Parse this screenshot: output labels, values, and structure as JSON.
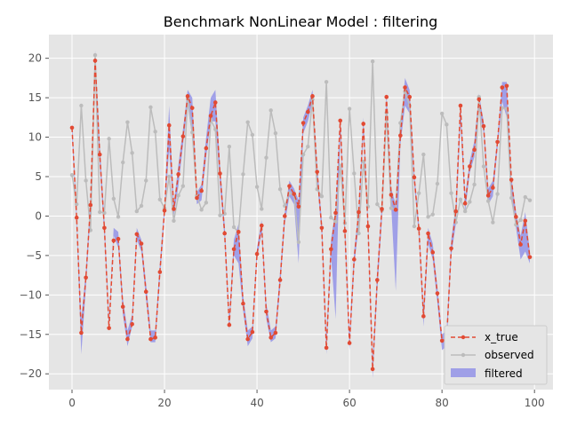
{
  "chart_data": {
    "type": "line",
    "title": "Benchmark NonLinear Model : filtering",
    "xlabel": "",
    "ylabel": "",
    "xlim": [
      -5,
      104
    ],
    "ylim": [
      -22,
      23
    ],
    "xticks": [
      0,
      20,
      40,
      60,
      80,
      100
    ],
    "yticks": [
      -20,
      -15,
      -10,
      -5,
      0,
      5,
      10,
      15,
      20
    ],
    "grid": true,
    "legend_position": "lower right",
    "x": [
      0,
      1,
      2,
      3,
      4,
      5,
      6,
      7,
      8,
      9,
      10,
      11,
      12,
      13,
      14,
      15,
      16,
      17,
      18,
      19,
      20,
      21,
      22,
      23,
      24,
      25,
      26,
      27,
      28,
      29,
      30,
      31,
      32,
      33,
      34,
      35,
      36,
      37,
      38,
      39,
      40,
      41,
      42,
      43,
      44,
      45,
      46,
      47,
      48,
      49,
      50,
      51,
      52,
      53,
      54,
      55,
      56,
      57,
      58,
      59,
      60,
      61,
      62,
      63,
      64,
      65,
      66,
      67,
      68,
      69,
      70,
      71,
      72,
      73,
      74,
      75,
      76,
      77,
      78,
      79,
      80,
      81,
      82,
      83,
      84,
      85,
      86,
      87,
      88,
      89,
      90,
      91,
      92,
      93,
      94,
      95,
      96,
      97,
      98,
      99
    ],
    "series": [
      {
        "name": "x_true",
        "style": "dashed-marker",
        "color": "#e24a33",
        "values": [
          11.2,
          -0.2,
          -14.8,
          -7.8,
          1.4,
          19.7,
          7.8,
          -1.5,
          -14.2,
          -3.1,
          -2.9,
          -11.5,
          -15.6,
          -13.7,
          -2.3,
          -3.5,
          -9.6,
          -15.6,
          -15.4,
          -7.1,
          0.7,
          11.5,
          0.9,
          5.3,
          10.1,
          15.2,
          13.7,
          2.3,
          3.2,
          8.6,
          12.7,
          14.4,
          5.4,
          -2.2,
          -13.8,
          -4.2,
          -2.0,
          -11.1,
          -15.6,
          -14.7,
          -4.8,
          -1.2,
          -12.1,
          -15.4,
          -14.8,
          -8.1,
          0.0,
          3.8,
          2.8,
          1.2,
          11.8,
          13.2,
          15.2,
          5.6,
          -1.5,
          -16.7,
          -4.2,
          0.4,
          12.1,
          -1.9,
          -16.1,
          -5.5,
          0.5,
          11.7,
          -1.3,
          -19.4,
          -8.1,
          0.9,
          15.1,
          2.7,
          0.8,
          10.2,
          16.3,
          15.1,
          4.9,
          -1.6,
          -12.7,
          -2.2,
          -4.6,
          -9.8,
          -15.8,
          -15.6,
          -4.1,
          0.6,
          14.0,
          1.6,
          6.3,
          8.4,
          14.8,
          11.4,
          2.6,
          3.6,
          9.4,
          16.3,
          16.5,
          4.6,
          -0.1,
          -3.6,
          -0.6,
          -5.2
        ]
      },
      {
        "name": "observed",
        "style": "solid-marker",
        "color": "#bcbcbc",
        "values": [
          5.2,
          1.5,
          14.0,
          4.5,
          -1.8,
          20.4,
          0.5,
          0.4,
          9.8,
          2.2,
          -0.1,
          6.8,
          11.9,
          8.0,
          0.6,
          1.3,
          4.5,
          13.8,
          10.7,
          2.1,
          1.0,
          5.0,
          -0.6,
          2.6,
          3.8,
          14.9,
          10.6,
          2.6,
          0.8,
          1.7,
          12.2,
          11.0,
          0.1,
          0.3,
          8.8,
          -1.4,
          -2.1,
          5.3,
          11.9,
          10.3,
          3.7,
          0.9,
          7.4,
          13.4,
          10.5,
          3.4,
          1.3,
          2.9,
          2.7,
          -3.3,
          7.8,
          8.8,
          14.8,
          3.4,
          2.5,
          17.0,
          -0.2,
          -0.7,
          6.4,
          -0.9,
          13.6,
          5.4,
          -2.2,
          6.9,
          1.2,
          19.6,
          1.5,
          0.7,
          13.1,
          1.0,
          0.8,
          11.8,
          15.8,
          14.0,
          -1.3,
          2.9,
          7.8,
          -0.1,
          0.2,
          4.1,
          13.0,
          11.6,
          2.9,
          -0.8,
          2.1,
          0.6,
          1.8,
          4.0,
          15.1,
          6.3,
          1.9,
          -0.8,
          2.8,
          13.7,
          13.6,
          2.3,
          -1.1,
          -0.5,
          2.4,
          2.0
        ]
      },
      {
        "name": "filtered",
        "style": "band",
        "color": "#7a7ae8",
        "lower": [
          10.0,
          -1.0,
          -17.5,
          -9.0,
          0.5,
          18.5,
          6.5,
          -2.5,
          -14.5,
          -2.5,
          -4.0,
          -12.5,
          -16.5,
          -14.0,
          -3.0,
          -4.5,
          -10.5,
          -16.0,
          -16.0,
          -8.0,
          0.0,
          8.5,
          0.0,
          3.8,
          9.0,
          14.0,
          10.0,
          1.5,
          2.0,
          7.5,
          12.0,
          12.0,
          4.0,
          -3.0,
          -14.5,
          -5.0,
          -6.0,
          -12.0,
          -16.5,
          -15.5,
          -5.5,
          -2.0,
          -13.0,
          -16.0,
          -15.5,
          -9.0,
          -1.0,
          2.5,
          1.5,
          -6.0,
          10.5,
          12.0,
          14.5,
          4.5,
          -2.5,
          -17.5,
          -5.0,
          -13.0,
          10.5,
          -3.0,
          -17.0,
          -6.5,
          -1.0,
          10.5,
          -2.0,
          -20.5,
          -9.5,
          -0.5,
          14.0,
          1.5,
          -9.5,
          9.0,
          14.0,
          13.0,
          4.0,
          -2.5,
          -14.0,
          -3.5,
          -5.5,
          -11.0,
          -17.0,
          -16.5,
          -5.0,
          -1.0,
          12.0,
          0.5,
          5.5,
          7.5,
          13.5,
          10.5,
          1.5,
          2.5,
          8.5,
          14.5,
          12.5,
          3.0,
          -1.5,
          -5.5,
          -4.5,
          -6.0
        ],
        "upper": [
          12.0,
          0.5,
          -13.0,
          -7.0,
          2.5,
          21.0,
          9.0,
          -0.5,
          -13.0,
          -1.5,
          -2.0,
          -10.5,
          -14.5,
          -12.5,
          -1.5,
          -3.0,
          -8.5,
          -14.5,
          -14.5,
          -6.0,
          1.5,
          14.0,
          1.5,
          6.5,
          11.0,
          16.0,
          15.0,
          3.0,
          4.0,
          10.0,
          15.0,
          16.0,
          6.5,
          -1.0,
          -13.0,
          -3.0,
          -1.0,
          -10.0,
          -14.5,
          -14.0,
          -4.0,
          -0.5,
          -11.0,
          -14.5,
          -14.0,
          -7.0,
          0.5,
          4.5,
          3.5,
          2.0,
          12.5,
          14.0,
          16.0,
          6.5,
          -0.5,
          -15.5,
          -3.0,
          1.0,
          12.5,
          -1.0,
          -15.0,
          -4.5,
          1.0,
          12.5,
          -0.5,
          -18.5,
          -7.0,
          1.5,
          15.5,
          3.5,
          1.5,
          11.0,
          17.5,
          16.0,
          5.5,
          -1.0,
          -12.0,
          -1.5,
          -3.5,
          -9.0,
          -15.0,
          -14.5,
          -3.0,
          1.5,
          14.5,
          2.5,
          7.0,
          9.5,
          15.5,
          12.0,
          3.5,
          4.5,
          10.0,
          17.0,
          17.0,
          5.0,
          0.5,
          -2.5,
          0.5,
          -4.5
        ]
      }
    ]
  }
}
